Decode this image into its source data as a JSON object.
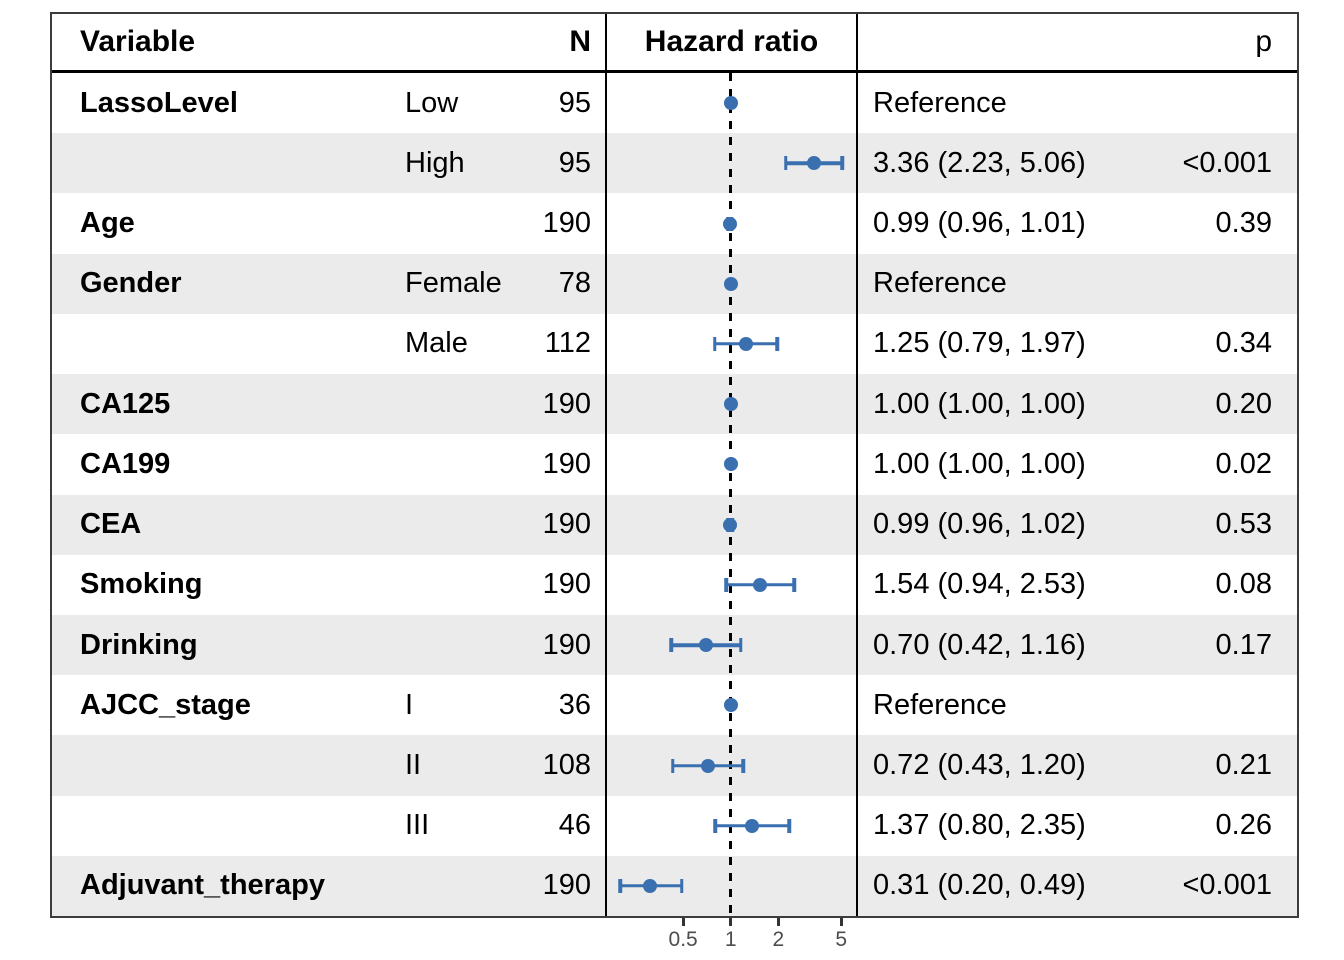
{
  "header": {
    "variable": "Variable",
    "n": "N",
    "hazard_ratio": "Hazard ratio",
    "p": "p"
  },
  "colors": {
    "marker_blue": "#3a6fb0",
    "stripe_gray": "#ebebeb",
    "tick_gray": "#4d4d4d",
    "border_black": "#000000"
  },
  "chart_data": {
    "type": "scatter",
    "subtype": "forest-plot",
    "title": "",
    "xlabel": "Hazard ratio",
    "x_scale": "log",
    "xlim": [
      0.165,
      6.2
    ],
    "reference_line": 1,
    "x_ticks": [
      0.5,
      1,
      2,
      5
    ],
    "x_tick_labels": [
      "0.5",
      "1",
      "2",
      "5"
    ],
    "grid": false,
    "rows": [
      {
        "variable": "LassoLevel",
        "level": "Low",
        "n": "95",
        "estimate": "Reference",
        "p": "",
        "hr": 1.0,
        "ci_lo": null,
        "ci_hi": null,
        "reference": true
      },
      {
        "variable": "",
        "level": "High",
        "n": "95",
        "estimate": "3.36 (2.23, 5.06)",
        "p": "<0.001",
        "hr": 3.36,
        "ci_lo": 2.23,
        "ci_hi": 5.06,
        "reference": false
      },
      {
        "variable": "Age",
        "level": "",
        "n": "190",
        "estimate": "0.99 (0.96, 1.01)",
        "p": "0.39",
        "hr": 0.99,
        "ci_lo": 0.96,
        "ci_hi": 1.01,
        "reference": false
      },
      {
        "variable": "Gender",
        "level": "Female",
        "n": "78",
        "estimate": "Reference",
        "p": "",
        "hr": 1.0,
        "ci_lo": null,
        "ci_hi": null,
        "reference": true
      },
      {
        "variable": "",
        "level": "Male",
        "n": "112",
        "estimate": "1.25 (0.79, 1.97)",
        "p": "0.34",
        "hr": 1.25,
        "ci_lo": 0.79,
        "ci_hi": 1.97,
        "reference": false
      },
      {
        "variable": "CA125",
        "level": "",
        "n": "190",
        "estimate": "1.00 (1.00, 1.00)",
        "p": "0.20",
        "hr": 1.0,
        "ci_lo": 1.0,
        "ci_hi": 1.0,
        "reference": false
      },
      {
        "variable": "CA199",
        "level": "",
        "n": "190",
        "estimate": "1.00 (1.00, 1.00)",
        "p": "0.02",
        "hr": 1.0,
        "ci_lo": 1.0,
        "ci_hi": 1.0,
        "reference": false
      },
      {
        "variable": "CEA",
        "level": "",
        "n": "190",
        "estimate": "0.99 (0.96, 1.02)",
        "p": "0.53",
        "hr": 0.99,
        "ci_lo": 0.96,
        "ci_hi": 1.02,
        "reference": false
      },
      {
        "variable": "Smoking",
        "level": "",
        "n": "190",
        "estimate": "1.54 (0.94, 2.53)",
        "p": "0.08",
        "hr": 1.54,
        "ci_lo": 0.94,
        "ci_hi": 2.53,
        "reference": false
      },
      {
        "variable": "Drinking",
        "level": "",
        "n": "190",
        "estimate": "0.70 (0.42, 1.16)",
        "p": "0.17",
        "hr": 0.7,
        "ci_lo": 0.42,
        "ci_hi": 1.16,
        "reference": false
      },
      {
        "variable": "AJCC_stage",
        "level": "I",
        "n": "36",
        "estimate": "Reference",
        "p": "",
        "hr": 1.0,
        "ci_lo": null,
        "ci_hi": null,
        "reference": true
      },
      {
        "variable": "",
        "level": "II",
        "n": "108",
        "estimate": "0.72 (0.43, 1.20)",
        "p": "0.21",
        "hr": 0.72,
        "ci_lo": 0.43,
        "ci_hi": 1.2,
        "reference": false
      },
      {
        "variable": "",
        "level": "III",
        "n": "46",
        "estimate": "1.37 (0.80, 2.35)",
        "p": "0.26",
        "hr": 1.37,
        "ci_lo": 0.8,
        "ci_hi": 2.35,
        "reference": false
      },
      {
        "variable": "Adjuvant_therapy",
        "level": "",
        "n": "190",
        "estimate": "0.31 (0.20, 0.49)",
        "p": "<0.001",
        "hr": 0.31,
        "ci_lo": 0.2,
        "ci_hi": 0.49,
        "reference": false
      }
    ]
  }
}
